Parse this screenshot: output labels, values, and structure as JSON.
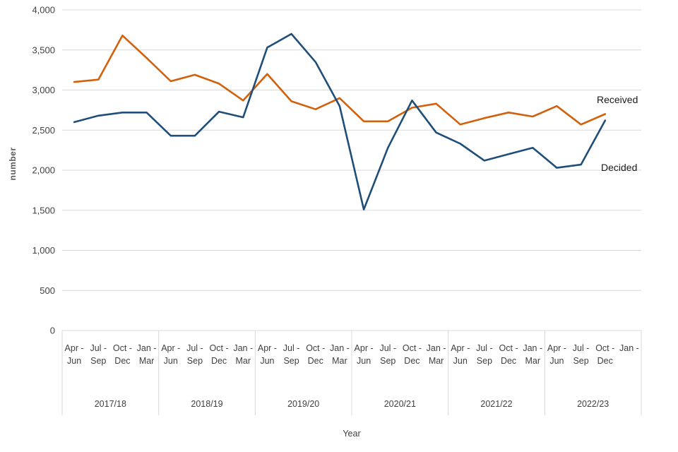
{
  "chart_data": {
    "type": "line",
    "title": "",
    "xlabel": "Year",
    "ylabel": "number",
    "ylim": [
      0,
      4000
    ],
    "yticks": [
      0,
      500,
      1000,
      1500,
      2000,
      2500,
      3000,
      3500,
      4000
    ],
    "grid": true,
    "legend_position": "end-of-line-labels",
    "year_groups": [
      "2017/18",
      "2018/19",
      "2019/20",
      "2020/21",
      "2021/22",
      "2022/23"
    ],
    "quarters": [
      [
        "Apr -",
        "Jun"
      ],
      [
        "Jul -",
        "Sep"
      ],
      [
        "Oct -",
        "Dec"
      ],
      [
        "Jan -",
        "Mar"
      ],
      [
        "Apr -",
        "Jun"
      ],
      [
        "Jul -",
        "Sep"
      ],
      [
        "Oct -",
        "Dec"
      ],
      [
        "Jan -",
        "Mar"
      ],
      [
        "Apr -",
        "Jun"
      ],
      [
        "Jul -",
        "Sep"
      ],
      [
        "Oct -",
        "Dec"
      ],
      [
        "Jan -",
        "Mar"
      ],
      [
        "Apr -",
        "Jun"
      ],
      [
        "Jul -",
        "Sep"
      ],
      [
        "Oct -",
        "Dec"
      ],
      [
        "Jan -",
        "Mar"
      ],
      [
        "Apr -",
        "Jun"
      ],
      [
        "Jul -",
        "Sep"
      ],
      [
        "Oct -",
        "Dec"
      ],
      [
        "Jan -",
        "Mar"
      ],
      [
        "Apr -",
        "Jun"
      ],
      [
        "Jul -",
        "Sep"
      ],
      [
        "Oct -",
        "Dec"
      ],
      [
        "Jan -",
        ""
      ]
    ],
    "series": [
      {
        "name": "Received",
        "color": "#d2610c",
        "values": [
          3100,
          3130,
          3680,
          3400,
          3110,
          3190,
          3080,
          2870,
          3200,
          2860,
          2760,
          2900,
          2610,
          2610,
          2780,
          2830,
          2570,
          2650,
          2720,
          2670,
          2800,
          2570,
          2700,
          null
        ]
      },
      {
        "name": "Decided",
        "color": "#1f4e79",
        "values": [
          2600,
          2680,
          2720,
          2720,
          2430,
          2430,
          2730,
          2660,
          3530,
          3700,
          3350,
          2800,
          1510,
          2280,
          2870,
          2470,
          2330,
          2120,
          2200,
          2280,
          2030,
          2070,
          2620,
          null
        ]
      }
    ],
    "colors": {
      "gridline": "#d9d9d9",
      "axis_text": "#404040",
      "ylabel_text": "#595959"
    }
  }
}
